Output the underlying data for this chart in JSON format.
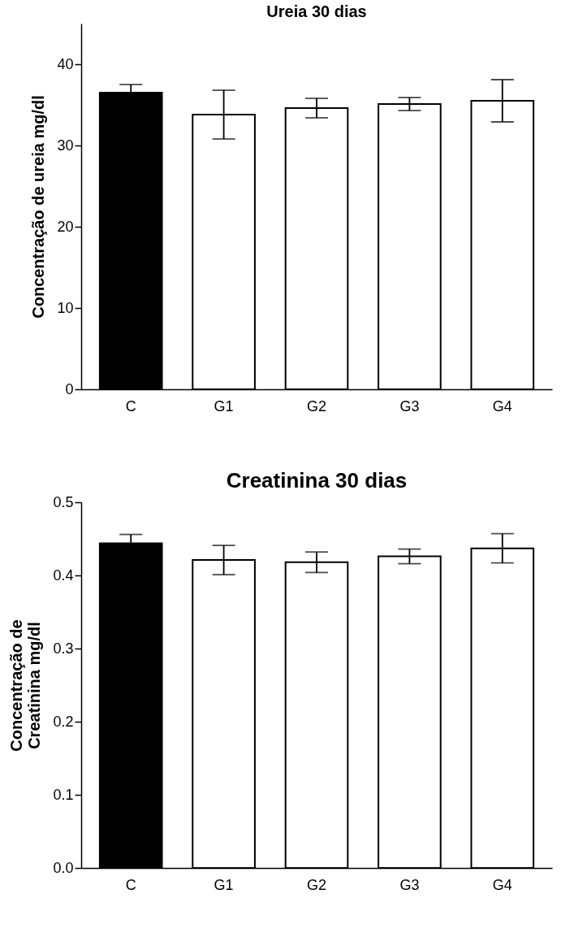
{
  "chart_data": [
    {
      "type": "bar",
      "title": "Ureia 30 dias",
      "ylabel": "Concentração de ureia mg/dl",
      "categories": [
        "C",
        "G1",
        "G2",
        "G3",
        "G4"
      ],
      "values": [
        36.5,
        33.8,
        34.6,
        35.1,
        35.5
      ],
      "colors": [
        "#000000",
        "#ffffff",
        "#ffffff",
        "#ffffff",
        "#ffffff"
      ],
      "errors": [
        1.0,
        3.0,
        1.2,
        0.8,
        2.6
      ],
      "ylim": [
        0,
        45
      ],
      "yticks": [
        0,
        10,
        20,
        30,
        40
      ],
      "grid": false
    },
    {
      "type": "bar",
      "title": "Creatinina 30 dias",
      "ylabel": "Concentração de\nCreatinina mg/dl",
      "categories": [
        "C",
        "G1",
        "G2",
        "G3",
        "G4"
      ],
      "values": [
        0.444,
        0.421,
        0.418,
        0.426,
        0.437
      ],
      "colors": [
        "#000000",
        "#ffffff",
        "#ffffff",
        "#ffffff",
        "#ffffff"
      ],
      "errors": [
        0.012,
        0.02,
        0.014,
        0.01,
        0.02
      ],
      "ylim": [
        0,
        0.5
      ],
      "yticks": [
        {
          "value": 0,
          "label": "0.0"
        },
        0.1,
        0.2,
        0.3,
        0.4,
        0.5
      ],
      "grid": false
    }
  ]
}
